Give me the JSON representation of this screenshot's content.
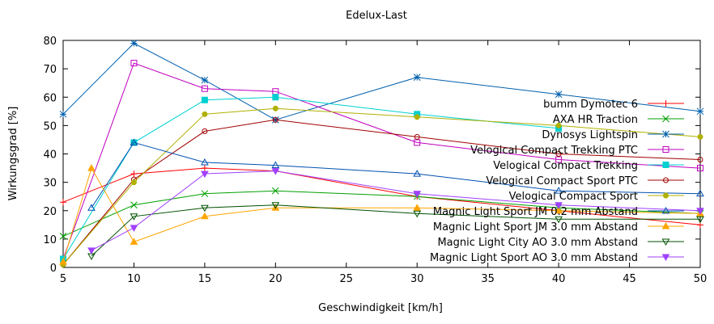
{
  "chart_data": {
    "type": "line",
    "title": "Edelux-Last",
    "xlabel": "Geschwindigkeit [km/h]",
    "ylabel": "Wirkungsgrad [%]",
    "xlim": [
      5,
      50
    ],
    "ylim": [
      0,
      80
    ],
    "xticks": [
      5,
      10,
      15,
      20,
      25,
      30,
      35,
      40,
      45,
      50
    ],
    "yticks": [
      0,
      10,
      20,
      30,
      40,
      50,
      60,
      70,
      80
    ],
    "grid": false,
    "legend_position": "right",
    "series": [
      {
        "name": "bumm Dymotec 6",
        "color": "#ff0000",
        "marker": "plus",
        "points": [
          [
            5,
            23
          ],
          [
            10,
            33
          ],
          [
            15,
            35
          ],
          [
            20,
            34
          ],
          [
            30,
            25
          ],
          [
            40,
            20
          ],
          [
            50,
            15
          ]
        ]
      },
      {
        "name": "AXA HR Traction",
        "color": "#00a000",
        "marker": "cross",
        "points": [
          [
            5,
            11
          ],
          [
            10,
            22
          ],
          [
            15,
            26
          ],
          [
            20,
            27
          ],
          [
            30,
            25
          ],
          [
            40,
            21
          ],
          [
            50,
            19
          ]
        ]
      },
      {
        "name": "Dynosys Lightspin",
        "color": "#0060ad",
        "marker": "star",
        "points": [
          [
            5,
            54
          ],
          [
            10,
            79
          ],
          [
            15,
            66
          ],
          [
            20,
            52
          ],
          [
            30,
            67
          ],
          [
            40,
            61
          ],
          [
            50,
            55
          ]
        ]
      },
      {
        "name": "Velogical Compact Trekking PTC",
        "color": "#c000c0",
        "marker": "square",
        "points": [
          [
            5,
            3
          ],
          [
            10,
            72
          ],
          [
            15,
            63
          ],
          [
            20,
            62
          ],
          [
            30,
            44
          ],
          [
            40,
            38
          ],
          [
            50,
            35
          ]
        ]
      },
      {
        "name": "Velogical Compact Trekking",
        "color": "#00d0d0",
        "marker": "square-filled",
        "points": [
          [
            5,
            3
          ],
          [
            10,
            44
          ],
          [
            15,
            59
          ],
          [
            20,
            60
          ],
          [
            30,
            54
          ],
          [
            40,
            49
          ]
        ]
      },
      {
        "name": "Velogical Compact Sport PTC",
        "color": "#a00000",
        "marker": "circle",
        "points": [
          [
            5,
            1
          ],
          [
            10,
            31
          ],
          [
            15,
            48
          ],
          [
            20,
            52
          ],
          [
            30,
            46
          ],
          [
            40,
            40
          ],
          [
            50,
            38
          ]
        ]
      },
      {
        "name": "Velogical Compact Sport",
        "color": "#b0b000",
        "marker": "circle-filled",
        "points": [
          [
            5,
            1
          ],
          [
            10,
            30
          ],
          [
            15,
            54
          ],
          [
            20,
            56
          ],
          [
            30,
            53
          ],
          [
            40,
            50
          ],
          [
            50,
            46
          ]
        ]
      },
      {
        "name": "Magnic Light Sport JM 0.2 mm Abstand",
        "color": "#0050b0",
        "marker": "triangle",
        "points": [
          [
            7,
            21
          ],
          [
            10,
            44
          ],
          [
            15,
            37
          ],
          [
            20,
            36
          ],
          [
            30,
            33
          ],
          [
            40,
            27
          ],
          [
            50,
            26
          ]
        ]
      },
      {
        "name": "Magnic Light Sport JM 3.0 mm Abstand",
        "color": "#ffa500",
        "marker": "triangle-filled",
        "points": [
          [
            5,
            2
          ],
          [
            7,
            35
          ],
          [
            10,
            9
          ],
          [
            15,
            18
          ],
          [
            20,
            21
          ],
          [
            30,
            21
          ],
          [
            40,
            20
          ],
          [
            50,
            19
          ]
        ]
      },
      {
        "name": "Magnic Light City AO 3.0 mm Abstand",
        "color": "#005000",
        "marker": "triangle-down",
        "points": [
          [
            7,
            4
          ],
          [
            10,
            18
          ],
          [
            15,
            21
          ],
          [
            20,
            22
          ],
          [
            30,
            19
          ],
          [
            40,
            17
          ],
          [
            50,
            17
          ]
        ]
      },
      {
        "name": "Magnic Light Sport AO 3.0 mm Abstand",
        "color": "#a040ff",
        "marker": "triangle-down-filled",
        "points": [
          [
            7,
            6
          ],
          [
            10,
            14
          ],
          [
            15,
            33
          ],
          [
            20,
            34
          ],
          [
            30,
            26
          ],
          [
            40,
            22
          ],
          [
            50,
            20
          ]
        ]
      }
    ]
  }
}
